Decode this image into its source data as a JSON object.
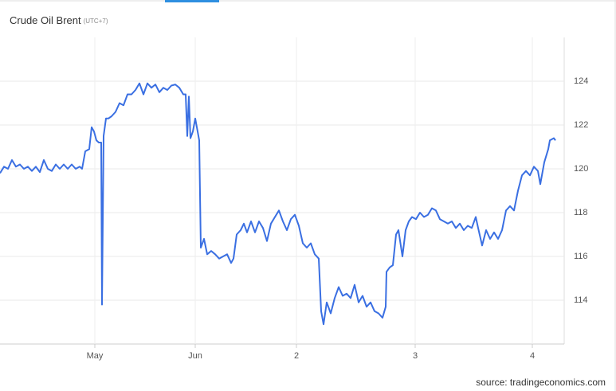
{
  "chart_data": {
    "type": "line",
    "title": "Crude Oil Brent",
    "subtitle": "(UTC+7)",
    "source": "source: tradingeconomics.com",
    "x": [
      0,
      5,
      10,
      15,
      20,
      25,
      30,
      35,
      40,
      45,
      50,
      55,
      60,
      65,
      70,
      75,
      80,
      85,
      90,
      95,
      100,
      103,
      107,
      112,
      115,
      118,
      121,
      124,
      127,
      128,
      130,
      133,
      136,
      140,
      145,
      150,
      155,
      160,
      165,
      170,
      175,
      180,
      185,
      190,
      195,
      200,
      205,
      210,
      215,
      220,
      225,
      230,
      233,
      235,
      237,
      239,
      242,
      245,
      248,
      250,
      252,
      256,
      260,
      265,
      270,
      275,
      280,
      285,
      290,
      293,
      297,
      302,
      306,
      310,
      315,
      320,
      325,
      330,
      335,
      340,
      345,
      350,
      355,
      360,
      365,
      370,
      375,
      380,
      385,
      390,
      395,
      400,
      403,
      406,
      410,
      415,
      420,
      425,
      430,
      435,
      440,
      445,
      450,
      455,
      460,
      465,
      470,
      475,
      480,
      484,
      485,
      489,
      493,
      497,
      500,
      505,
      509,
      513,
      517,
      522,
      527,
      532,
      537,
      542,
      547,
      552,
      557,
      562,
      567,
      572,
      577,
      582,
      587,
      592,
      597,
      600,
      605,
      610,
      615,
      620,
      625,
      630,
      635,
      640,
      645,
      650,
      655,
      660,
      665,
      670,
      675,
      678,
      683,
      688,
      690,
      695,
      697
    ],
    "series": [
      {
        "name": "Crude Oil Brent",
        "color": "#3a6fe2",
        "values": [
          119.8,
          120.1,
          120.0,
          120.4,
          120.1,
          120.2,
          120.0,
          120.1,
          119.9,
          120.1,
          119.85,
          120.4,
          120.0,
          119.9,
          120.2,
          120.0,
          120.2,
          120.0,
          120.2,
          120.0,
          120.1,
          120.0,
          120.8,
          120.9,
          121.9,
          121.7,
          121.3,
          121.2,
          121.2,
          113.8,
          121.5,
          122.3,
          122.3,
          122.4,
          122.6,
          123.0,
          122.9,
          123.4,
          123.4,
          123.6,
          123.9,
          123.4,
          123.9,
          123.7,
          123.85,
          123.5,
          123.7,
          123.6,
          123.8,
          123.85,
          123.7,
          123.4,
          123.4,
          121.5,
          123.3,
          121.4,
          121.7,
          122.3,
          121.7,
          121.3,
          116.4,
          116.8,
          116.1,
          116.25,
          116.1,
          115.9,
          116.0,
          116.1,
          115.7,
          115.9,
          117.0,
          117.2,
          117.5,
          117.1,
          117.6,
          117.1,
          117.6,
          117.3,
          116.7,
          117.5,
          117.8,
          118.1,
          117.6,
          117.2,
          117.7,
          117.9,
          117.4,
          116.6,
          116.4,
          116.6,
          116.1,
          115.9,
          113.5,
          112.9,
          113.9,
          113.4,
          114.1,
          114.6,
          114.2,
          114.3,
          114.1,
          114.7,
          113.9,
          114.2,
          113.7,
          113.9,
          113.5,
          113.4,
          113.2,
          113.7,
          115.3,
          115.5,
          115.6,
          117.0,
          117.2,
          116.0,
          117.2,
          117.6,
          117.8,
          117.7,
          118.0,
          117.8,
          117.9,
          118.2,
          118.1,
          117.7,
          117.6,
          117.5,
          117.6,
          117.3,
          117.5,
          117.2,
          117.4,
          117.3,
          117.8,
          117.3,
          116.5,
          117.2,
          116.8,
          117.1,
          116.8,
          117.2,
          118.1,
          118.3,
          118.1,
          119.0,
          119.7,
          119.9,
          119.7,
          120.1,
          119.9,
          119.3,
          120.3,
          120.9,
          121.3,
          121.4,
          121.3
        ]
      }
    ],
    "xlim": [
      0,
      708
    ],
    "xticks": [
      {
        "value": 119,
        "label": "May"
      },
      {
        "value": 245,
        "label": "Jun"
      },
      {
        "value": 372,
        "label": "2"
      },
      {
        "value": 521,
        "label": "3"
      },
      {
        "value": 668,
        "label": "4"
      }
    ],
    "ylim": [
      112,
      126
    ],
    "yticks": [
      114,
      116,
      118,
      120,
      122,
      124
    ],
    "y_axis_side": "right",
    "grid": true
  }
}
